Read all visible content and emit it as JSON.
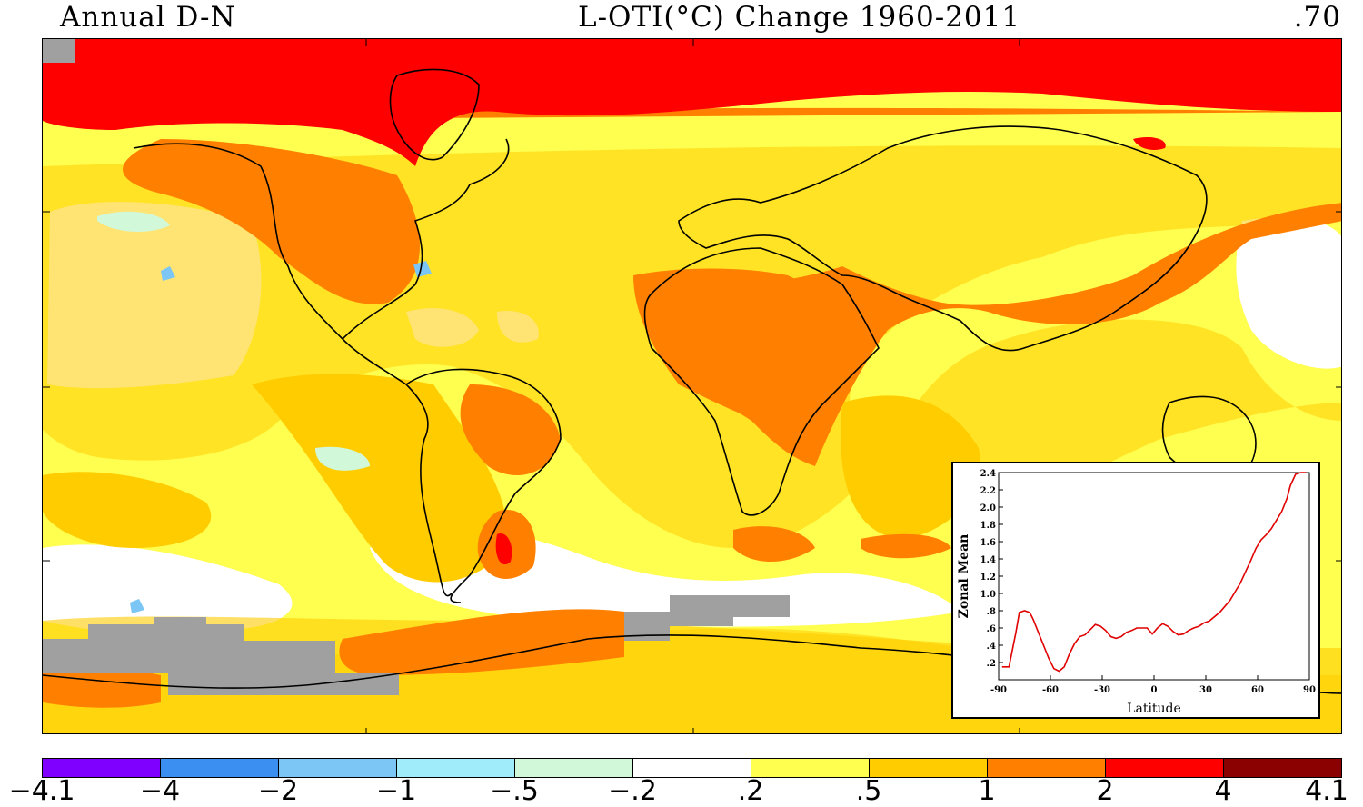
{
  "header": {
    "left": "Annual D-N",
    "center": "L-OTI(°C) Change 1960-2011",
    "right": ".70"
  },
  "colors": {
    "neg_4_1": "#8000ff",
    "neg_4": "#3b8ff0",
    "neg_2": "#7bc6f5",
    "neg_1": "#a0ecfa",
    "neg_05": "#d2f8da",
    "neg_02": "#ffffff",
    "pos_02": "#ffff50",
    "pos_05": "#ffcc00",
    "pos_1": "#ff8000",
    "pos_2": "#ff0000",
    "pos_4": "#8b0000",
    "missing": "#a0a0a0"
  },
  "legend": {
    "ticks": [
      "−4.1",
      "−4",
      "−2",
      "−1",
      "−.5",
      "−.2",
      ".2",
      ".5",
      "1",
      "2",
      "4",
      "4.1"
    ]
  },
  "chart_data": {
    "type": "line",
    "xlabel": "Latitude",
    "ylabel": "Zonal Mean",
    "xlim": [
      -90,
      90
    ],
    "ylim": [
      0,
      2.4
    ],
    "xticks": [
      "-90",
      "-60",
      "-30",
      "0",
      "30",
      "60",
      "90"
    ],
    "yticks": [
      ".2",
      ".4",
      ".6",
      ".8",
      "1.0",
      "1.2",
      "1.4",
      "1.6",
      "1.8",
      "2.0",
      "2.2",
      "2.4"
    ],
    "grid": false,
    "series": [
      {
        "x": [
          -88,
          -84,
          -80,
          -78,
          -75,
          -72,
          -70,
          -67,
          -64,
          -61,
          -58,
          -55,
          -52,
          -49,
          -46,
          -43,
          -40,
          -37,
          -34,
          -31,
          -28,
          -25,
          -22,
          -19,
          -16,
          -13,
          -10,
          -7,
          -4,
          -1,
          2,
          5,
          8,
          11,
          14,
          17,
          20,
          23,
          26,
          29,
          32,
          35,
          38,
          41,
          44,
          47,
          50,
          53,
          56,
          59,
          62,
          65,
          68,
          71,
          74,
          77,
          79,
          82,
          85,
          88
        ],
        "y": [
          0.15,
          0.15,
          0.55,
          0.78,
          0.8,
          0.78,
          0.7,
          0.55,
          0.4,
          0.25,
          0.13,
          0.1,
          0.15,
          0.3,
          0.42,
          0.5,
          0.52,
          0.58,
          0.64,
          0.62,
          0.57,
          0.5,
          0.48,
          0.5,
          0.55,
          0.57,
          0.6,
          0.6,
          0.6,
          0.53,
          0.6,
          0.65,
          0.62,
          0.56,
          0.52,
          0.53,
          0.57,
          0.6,
          0.62,
          0.66,
          0.68,
          0.73,
          0.78,
          0.85,
          0.92,
          1.02,
          1.12,
          1.25,
          1.38,
          1.52,
          1.62,
          1.68,
          1.75,
          1.85,
          1.95,
          2.1,
          2.25,
          2.38,
          2.4,
          2.4
        ],
        "color": "#e00000"
      }
    ]
  }
}
